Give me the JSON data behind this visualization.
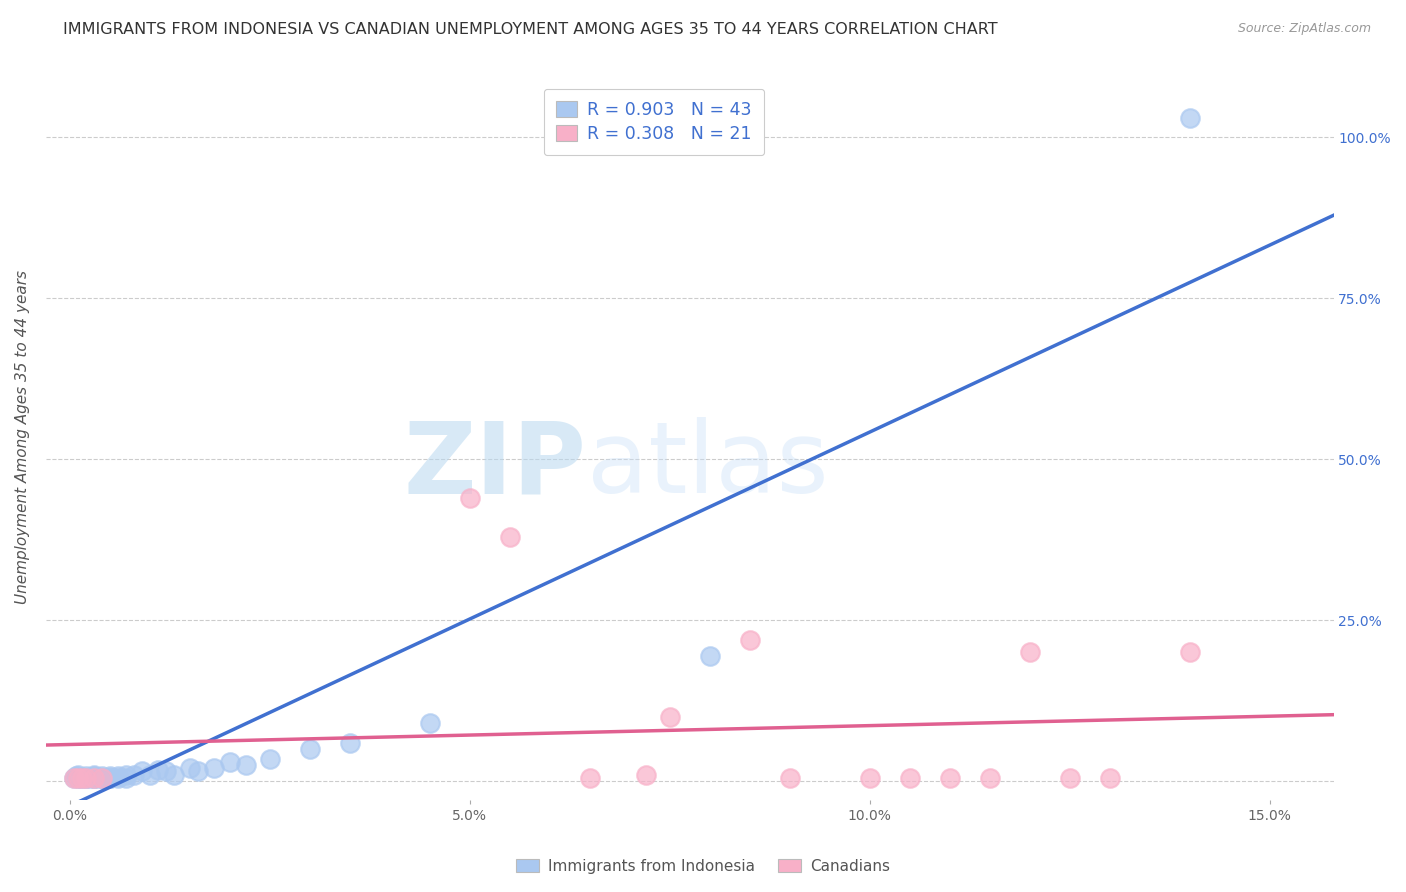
{
  "title": "IMMIGRANTS FROM INDONESIA VS CANADIAN UNEMPLOYMENT AMONG AGES 35 TO 44 YEARS CORRELATION CHART",
  "source": "Source: ZipAtlas.com",
  "ylabel": "Unemployment Among Ages 35 to 44 years",
  "x_ticks": [
    0.0,
    0.05,
    0.1,
    0.15
  ],
  "x_tick_labels": [
    "0.0%",
    "5.0%",
    "10.0%",
    "15.0%"
  ],
  "y_ticks": [
    0.0,
    0.25,
    0.5,
    0.75,
    1.0
  ],
  "y_tick_labels_right": [
    "",
    "25.0%",
    "50.0%",
    "75.0%",
    "100.0%"
  ],
  "xlim": [
    -0.003,
    0.158
  ],
  "ylim": [
    -0.03,
    1.1
  ],
  "blue_R": 0.903,
  "blue_N": 43,
  "pink_R": 0.308,
  "pink_N": 21,
  "blue_color": "#aac8f0",
  "blue_line_color": "#4070d0",
  "pink_color": "#f8b0c8",
  "pink_line_color": "#e06090",
  "background_color": "#ffffff",
  "grid_color": "#cccccc",
  "legend_label_blue": "Immigrants from Indonesia",
  "legend_label_pink": "Canadians",
  "blue_x": [
    0.0005,
    0.0008,
    0.001,
    0.001,
    0.0012,
    0.0015,
    0.002,
    0.002,
    0.002,
    0.0025,
    0.003,
    0.003,
    0.003,
    0.003,
    0.0035,
    0.004,
    0.004,
    0.004,
    0.0045,
    0.005,
    0.005,
    0.005,
    0.006,
    0.006,
    0.007,
    0.007,
    0.008,
    0.009,
    0.01,
    0.011,
    0.012,
    0.013,
    0.015,
    0.016,
    0.018,
    0.02,
    0.022,
    0.025,
    0.03,
    0.035,
    0.045,
    0.08,
    0.14
  ],
  "blue_y": [
    0.005,
    0.008,
    0.01,
    0.005,
    0.005,
    0.005,
    0.005,
    0.008,
    0.005,
    0.005,
    0.005,
    0.008,
    0.005,
    0.01,
    0.005,
    0.005,
    0.008,
    0.005,
    0.005,
    0.008,
    0.005,
    0.005,
    0.008,
    0.005,
    0.01,
    0.005,
    0.01,
    0.015,
    0.01,
    0.018,
    0.015,
    0.01,
    0.02,
    0.015,
    0.02,
    0.03,
    0.025,
    0.035,
    0.05,
    0.06,
    0.09,
    0.195,
    1.03
  ],
  "pink_x": [
    0.0005,
    0.001,
    0.0015,
    0.002,
    0.003,
    0.004,
    0.05,
    0.055,
    0.065,
    0.072,
    0.075,
    0.085,
    0.09,
    0.1,
    0.105,
    0.11,
    0.115,
    0.12,
    0.125,
    0.13,
    0.14
  ],
  "pink_y": [
    0.005,
    0.005,
    0.005,
    0.005,
    0.005,
    0.005,
    0.44,
    0.38,
    0.005,
    0.01,
    0.1,
    0.22,
    0.005,
    0.005,
    0.005,
    0.005,
    0.005,
    0.2,
    0.005,
    0.005,
    0.2
  ],
  "watermark_zip": "ZIP",
  "watermark_atlas": "atlas",
  "title_fontsize": 11.5,
  "axis_fontsize": 11,
  "tick_fontsize": 10
}
